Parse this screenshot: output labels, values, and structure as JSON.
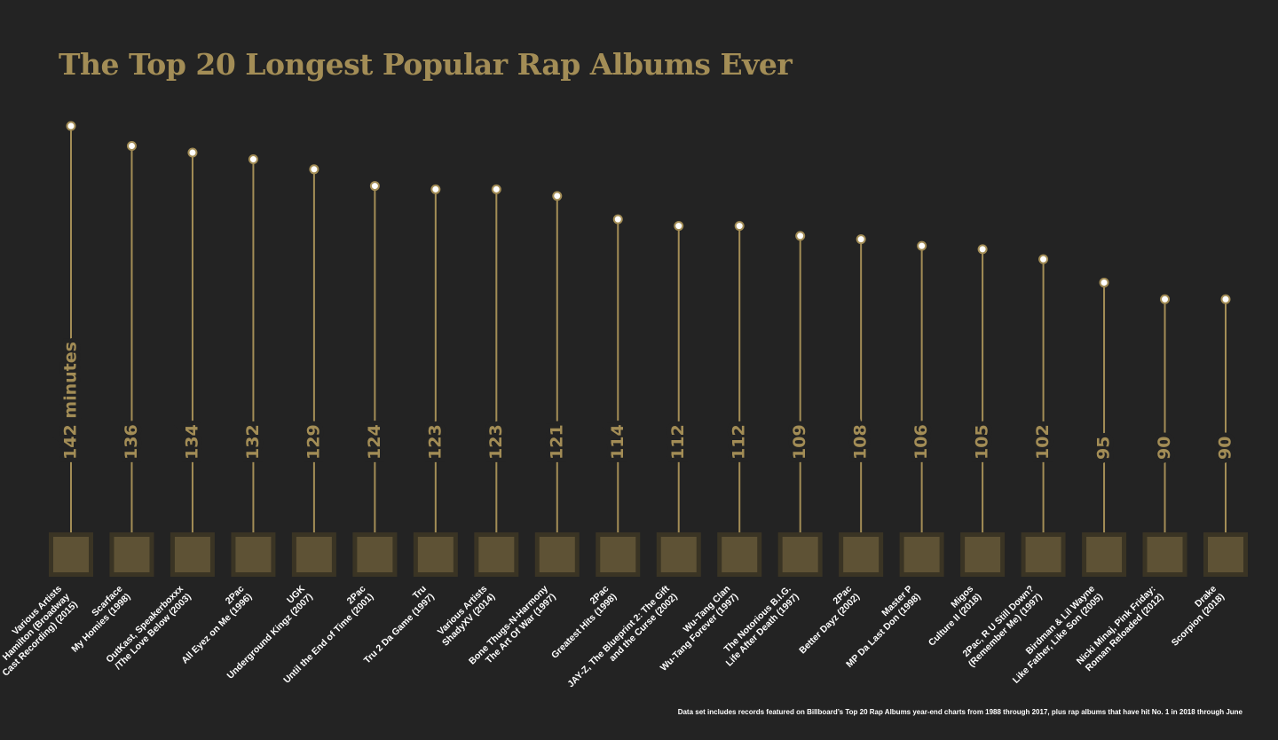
{
  "chart_data": {
    "type": "lollipop",
    "title": "The Top 20 Longest Popular Rap Albums Ever",
    "note": "Data set includes records featured on Billboard’s Top 20 Rap Albums year-end charts from 1988 through 2017, plus rap albums that have hit No. 1 in 2018 through June",
    "categories": [
      [
        "Various Artists",
        "Hamilton (Broadway",
        "Cast Recording) (2015)"
      ],
      [
        "Scarface",
        "My Homies (1998)"
      ],
      [
        "OutKast, Speakerboxxx",
        "/The Love Below (2003)"
      ],
      [
        "2Pac",
        "All Eyez on Me (1996)"
      ],
      [
        "UGK",
        "Underground Kingz (2007)"
      ],
      [
        "2Pac",
        "Until the End of Time (2001)"
      ],
      [
        "Tru",
        "Tru 2 Da Game (1997)"
      ],
      [
        "Various Artists",
        "ShadyXV (2014)"
      ],
      [
        "Bone Thugs-N-Harmony",
        "The Art Of War (1997)"
      ],
      [
        "2Pac",
        "Greatest Hits (1998)"
      ],
      [
        "JAY-Z, The Blueprint 2: The Gift",
        "and the Curse (2002)"
      ],
      [
        "Wu-Tang Clan",
        "Wu-Tang Forever (1997)"
      ],
      [
        "The Notorious B.I.G.",
        "Life After Death (1997)"
      ],
      [
        "2Pac",
        "Better Dayz (2002)"
      ],
      [
        "Master P",
        "MP Da Last Don (1998)"
      ],
      [
        "Migos",
        "Culture II (2018)"
      ],
      [
        "2Pac, R U Still Down?",
        "(Remember Me) (1997)"
      ],
      [
        "Birdman & Lil Wayne",
        "Like Father, Like Son (2005)"
      ],
      [
        "Nicki Minaj, Pink Friday:",
        "Roman Reloaded (2012)"
      ],
      [
        "Drake",
        "Scorpion (2018)"
      ]
    ],
    "values": [
      142,
      136,
      134,
      132,
      129,
      124,
      123,
      123,
      121,
      114,
      112,
      112,
      109,
      108,
      106,
      105,
      102,
      95,
      90,
      90
    ],
    "value_labels": [
      "142 minutes",
      "136",
      "134",
      "132",
      "129",
      "124",
      "123",
      "123",
      "121",
      "114",
      "112",
      "112",
      "109",
      "108",
      "106",
      "105",
      "102",
      "95",
      "90",
      "90"
    ],
    "ylim": [
      20,
      142
    ],
    "color": "#a38d56",
    "dot_color": "#ffffff"
  }
}
